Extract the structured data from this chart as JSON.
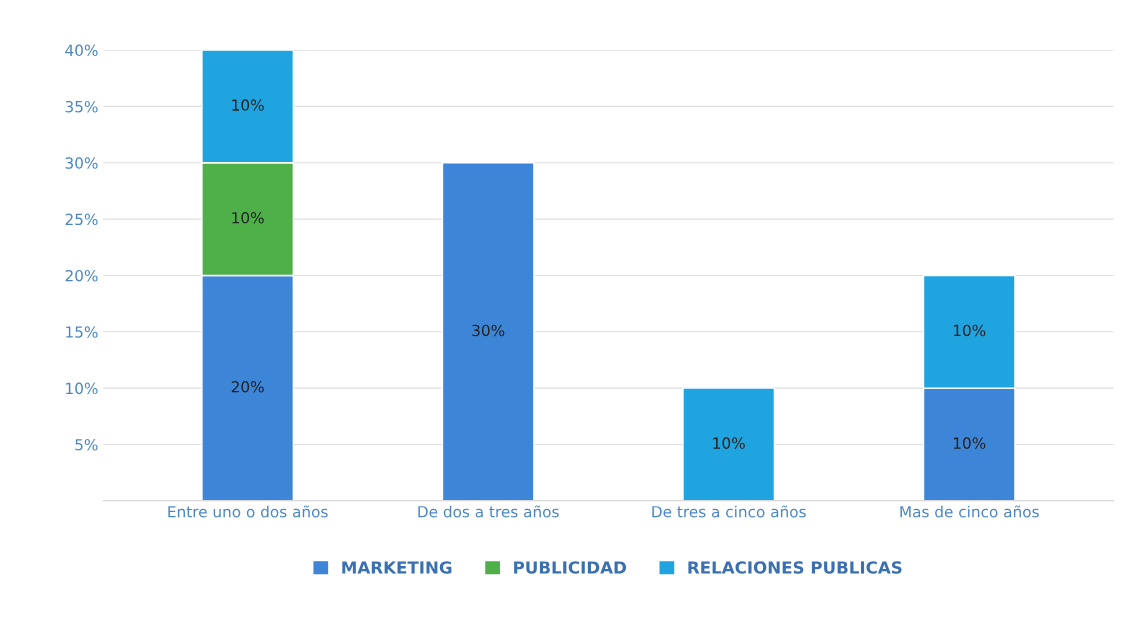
{
  "chart_data": {
    "type": "bar",
    "stacked": true,
    "categories": [
      "Entre uno o dos años",
      "De dos a tres años",
      "De tres a cinco años",
      "Mas de cinco años"
    ],
    "series": [
      {
        "name": "MARKETING",
        "color": "#3d85d6",
        "values": [
          20,
          30,
          null,
          10
        ],
        "value_labels": [
          "20%",
          "30%",
          null,
          "10%"
        ]
      },
      {
        "name": "PUBLICIDAD",
        "color": "#4fb04a",
        "values": [
          10,
          null,
          null,
          null
        ],
        "value_labels": [
          "10%",
          null,
          null,
          null
        ]
      },
      {
        "name": "RELACIONES PUBLICAS",
        "color": "#20a4df",
        "values": [
          10,
          null,
          10,
          10
        ],
        "value_labels": [
          "10%",
          null,
          "10%",
          "10%"
        ]
      }
    ],
    "ylim": [
      0,
      40
    ],
    "yticks": [
      {
        "value": 5,
        "label": "5%"
      },
      {
        "value": 10,
        "label": "10%"
      },
      {
        "value": 15,
        "label": "15%"
      },
      {
        "value": 20,
        "label": "20%"
      },
      {
        "value": 25,
        "label": "25%"
      },
      {
        "value": 30,
        "label": "30%"
      },
      {
        "value": 35,
        "label": "35%"
      },
      {
        "value": 40,
        "label": "40%"
      }
    ],
    "grid": "y",
    "legend": "bottom"
  }
}
